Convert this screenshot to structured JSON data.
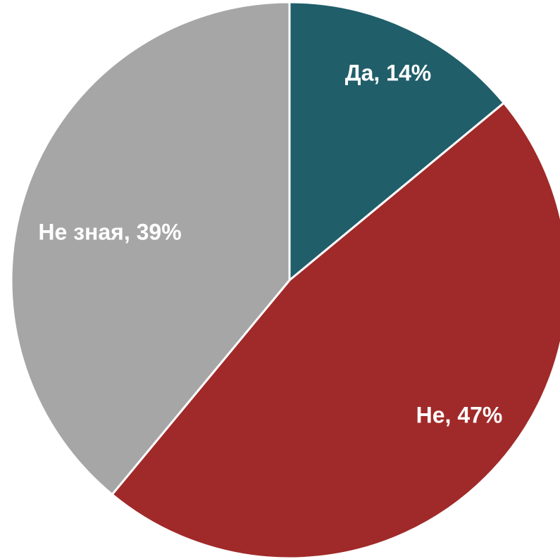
{
  "chart_data": {
    "type": "pie",
    "slices": [
      {
        "label": "Да, 14%",
        "category": "Да",
        "value": 14,
        "color": "#205E6A"
      },
      {
        "label": "Не, 47%",
        "category": "Не",
        "value": 47,
        "color": "#A02A29"
      },
      {
        "label": "Не зная, 39%",
        "category": "Не зная",
        "value": 39,
        "color": "#A6A6A6"
      }
    ],
    "start": "12 o'clock",
    "direction": "clockwise",
    "legend": "none",
    "labels_inside": true
  }
}
